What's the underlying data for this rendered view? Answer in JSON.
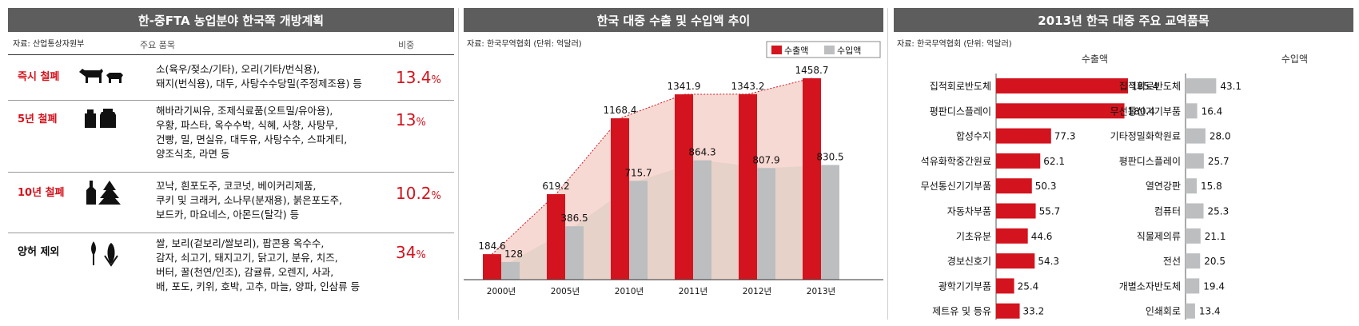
{
  "panel1": {
    "title": "한-중FTA 농업분야 한국쪽 개방계획",
    "source": "자료: 산업통상자원부",
    "col_items": "주요 품목",
    "col_share": "비중",
    "rows": [
      {
        "category": "즉시 철폐",
        "lines": [
          "소(육우/젖소/기타), 오리(기타/번식용),",
          "돼지(번식용), 대두, 사탕수수당밀(주정제조용) 등"
        ],
        "share": "13.4",
        "unit": "%"
      },
      {
        "category": "5년 철폐",
        "lines": [
          "해바라기씨유, 조제식료품(오트밀/유아용),",
          "우황, 파스타, 옥수수박, 식혜, 사향, 사탕무,",
          "건빵, 밀, 면실유, 대두유, 사탕수수, 스파게티,",
          "양조식초, 라면 등"
        ],
        "share": "13",
        "unit": "%"
      },
      {
        "category": "10년 철폐",
        "lines": [
          "꼬낙, 흰포도주, 코코넛, 베이커리제품,",
          "쿠키 및 크래커, 소나무(분재용), 붉은포도주,",
          "보드카, 마요네스, 아몬드(탈각) 등"
        ],
        "share": "10.2",
        "unit": "%"
      },
      {
        "category": "양허 제외",
        "lines": [
          "쌀, 보리(겉보리/쌀보리), 팝콘용 옥수수,",
          "감자, 쇠고기, 돼지고기, 닭고기, 분유, 치즈,",
          "버터, 꿀(천연/인조), 감귤류, 오렌지, 사과,",
          "배, 포도, 키위, 호박, 고추, 마늘, 양파, 인삼류 등"
        ],
        "share": "34",
        "unit": "%"
      }
    ]
  },
  "chart_data": [
    {
      "type": "bar",
      "title": "한국 대중 수출 및 수입액 추이",
      "source": "자료: 한국무역협회 (단위: 억달러)",
      "categories": [
        "2000년",
        "2005년",
        "2010년",
        "2011년",
        "2012년",
        "2013년"
      ],
      "series": [
        {
          "name": "수출액",
          "values": [
            184.6,
            619.2,
            1168.4,
            1341.9,
            1343.2,
            1458.7
          ],
          "labels": [
            "184.6",
            "619.2",
            "1168.4",
            "1341.9",
            "1343.2",
            "1458.7"
          ],
          "color": "#d3141e"
        },
        {
          "name": "수입액",
          "values": [
            128,
            386.5,
            715.7,
            864.3,
            807.9,
            830.5
          ],
          "labels": [
            "128",
            "386.5",
            "715.7",
            "864.3",
            "807.9",
            "830.5"
          ],
          "color": "#bcbec0"
        }
      ],
      "ylim": [
        0,
        1620
      ],
      "legend": "top-right"
    },
    {
      "type": "bar",
      "orientation": "horizontal",
      "title": "2013년 한국 대중 주요 교역품목",
      "source": "자료: 한국무역협회 (단위: 억달러)",
      "series": [
        {
          "name": "수출액",
          "color": "#d3141e",
          "categories": [
            "집적회로반도체",
            "평판디스플레이",
            "합성수지",
            "석유화학중간원료",
            "무선통신기기부품",
            "자동차부품",
            "기초유분",
            "경보신호기",
            "광학기기부품",
            "제트유 및 등유"
          ],
          "values": [
            185.4,
            180.4,
            77.3,
            62.1,
            50.3,
            55.7,
            44.6,
            54.3,
            25.4,
            33.2
          ],
          "labels": [
            "185.4",
            "180.4",
            "77.3",
            "62.1",
            "50.3",
            "55.7",
            "44.6",
            "54.3",
            "25.4",
            "33.2"
          ]
        },
        {
          "name": "수입액",
          "color": "#bcbec0",
          "categories": [
            "집적회로반도체",
            "무선통신기기부품",
            "기타정밀화학원료",
            "평판디스플레이",
            "열연강판",
            "컴퓨터",
            "직물제의류",
            "전선",
            "개별소자반도체",
            "인쇄회로"
          ],
          "values": [
            43.1,
            16.4,
            28.0,
            25.7,
            15.8,
            25.3,
            21.1,
            20.5,
            19.4,
            13.4
          ],
          "labels": [
            "43.1",
            "16.4",
            "28.0",
            "25.7",
            "15.8",
            "25.3",
            "21.1",
            "20.5",
            "19.4",
            "13.4"
          ]
        }
      ],
      "xlim": [
        0,
        200
      ]
    }
  ]
}
